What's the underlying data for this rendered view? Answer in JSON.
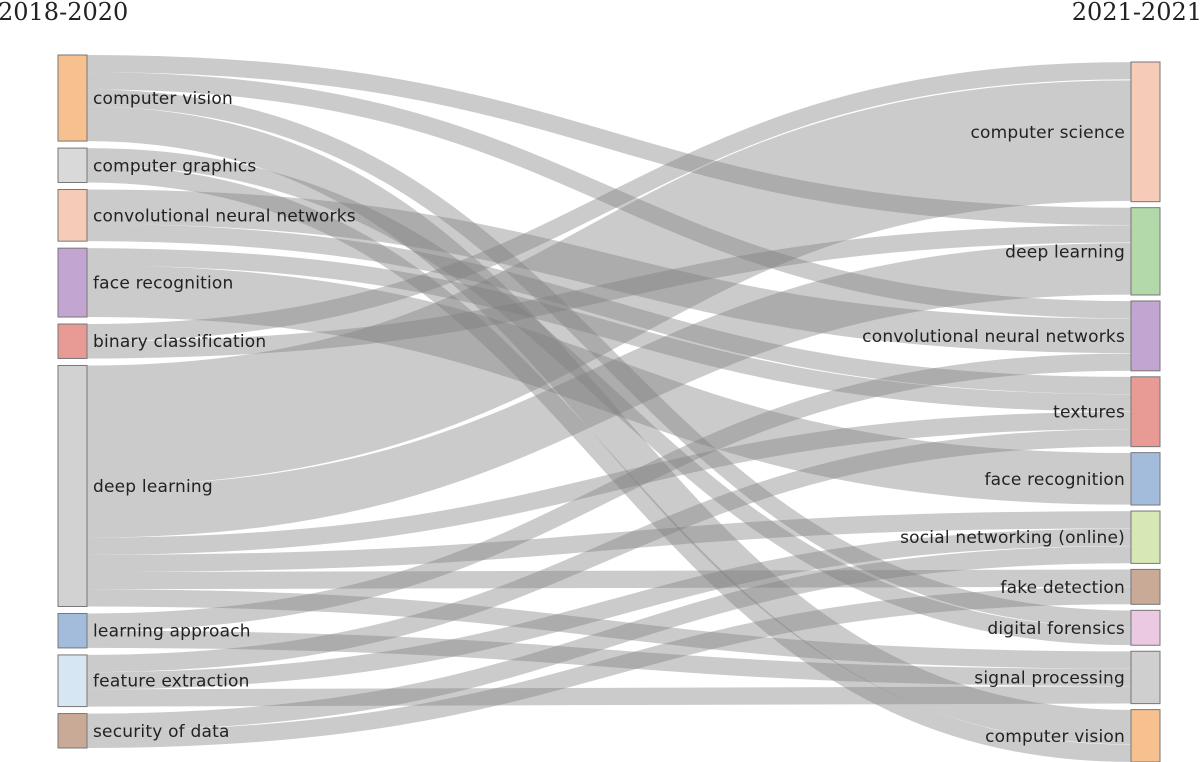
{
  "diagram": {
    "left_title": "2018-2020",
    "right_title": "2021-2021",
    "left_nodes": [
      {
        "id": "L0",
        "label": "computer vision",
        "color": "#f6c08f"
      },
      {
        "id": "L1",
        "label": "computer graphics",
        "color": "#d9d9d9"
      },
      {
        "id": "L2",
        "label": "convolutional neural networks",
        "color": "#f6cbb8"
      },
      {
        "id": "L3",
        "label": "face recognition",
        "color": "#c3a5d1"
      },
      {
        "id": "L4",
        "label": "binary classification",
        "color": "#e89a94"
      },
      {
        "id": "L5",
        "label": "deep learning",
        "color": "#d2d2d2"
      },
      {
        "id": "L6",
        "label": "learning approach",
        "color": "#a3bcdb"
      },
      {
        "id": "L7",
        "label": "feature extraction",
        "color": "#d6e6f2"
      },
      {
        "id": "L8",
        "label": "security of data",
        "color": "#c9aa96"
      }
    ],
    "right_nodes": [
      {
        "id": "R0",
        "label": "computer science",
        "color": "#f6cbb8"
      },
      {
        "id": "R1",
        "label": "deep learning",
        "color": "#b3d9aa"
      },
      {
        "id": "R2",
        "label": "convolutional neural networks",
        "color": "#c3a5d1"
      },
      {
        "id": "R3",
        "label": "textures",
        "color": "#e89a94"
      },
      {
        "id": "R4",
        "label": "face recognition",
        "color": "#a3bcdb"
      },
      {
        "id": "R5",
        "label": "social networking (online)",
        "color": "#d8e8b5"
      },
      {
        "id": "R6",
        "label": "fake detection",
        "color": "#c9aa96"
      },
      {
        "id": "R7",
        "label": "digital forensics",
        "color": "#ecc9e2"
      },
      {
        "id": "R8",
        "label": "signal processing",
        "color": "#cfcfcf"
      },
      {
        "id": "R9",
        "label": "computer vision",
        "color": "#f6c08f"
      }
    ],
    "flows": [
      {
        "from": "L0",
        "to": "R1",
        "value": 1
      },
      {
        "from": "L0",
        "to": "R2",
        "value": 1
      },
      {
        "from": "L0",
        "to": "R7",
        "value": 1
      },
      {
        "from": "L0",
        "to": "R9",
        "value": 2
      },
      {
        "from": "L1",
        "to": "R9",
        "value": 1
      },
      {
        "from": "L1",
        "to": "R7",
        "value": 1
      },
      {
        "from": "L2",
        "to": "R2",
        "value": 2
      },
      {
        "from": "L2",
        "to": "R3",
        "value": 1
      },
      {
        "from": "L3",
        "to": "R3",
        "value": 1
      },
      {
        "from": "L3",
        "to": "R4",
        "value": 3
      },
      {
        "from": "L4",
        "to": "R1",
        "value": 1
      },
      {
        "from": "L4",
        "to": "R0",
        "value": 1
      },
      {
        "from": "L5",
        "to": "R0",
        "value": 7
      },
      {
        "from": "L5",
        "to": "R1",
        "value": 3
      },
      {
        "from": "L5",
        "to": "R3",
        "value": 1
      },
      {
        "from": "L5",
        "to": "R5",
        "value": 1
      },
      {
        "from": "L5",
        "to": "R6",
        "value": 1
      },
      {
        "from": "L5",
        "to": "R8",
        "value": 1
      },
      {
        "from": "L6",
        "to": "R2",
        "value": 1
      },
      {
        "from": "L6",
        "to": "R8",
        "value": 1
      },
      {
        "from": "L7",
        "to": "R3",
        "value": 1
      },
      {
        "from": "L7",
        "to": "R5",
        "value": 1
      },
      {
        "from": "L7",
        "to": "R8",
        "value": 1
      },
      {
        "from": "L8",
        "to": "R6",
        "value": 1
      },
      {
        "from": "L8",
        "to": "R5",
        "value": 1
      }
    ]
  }
}
